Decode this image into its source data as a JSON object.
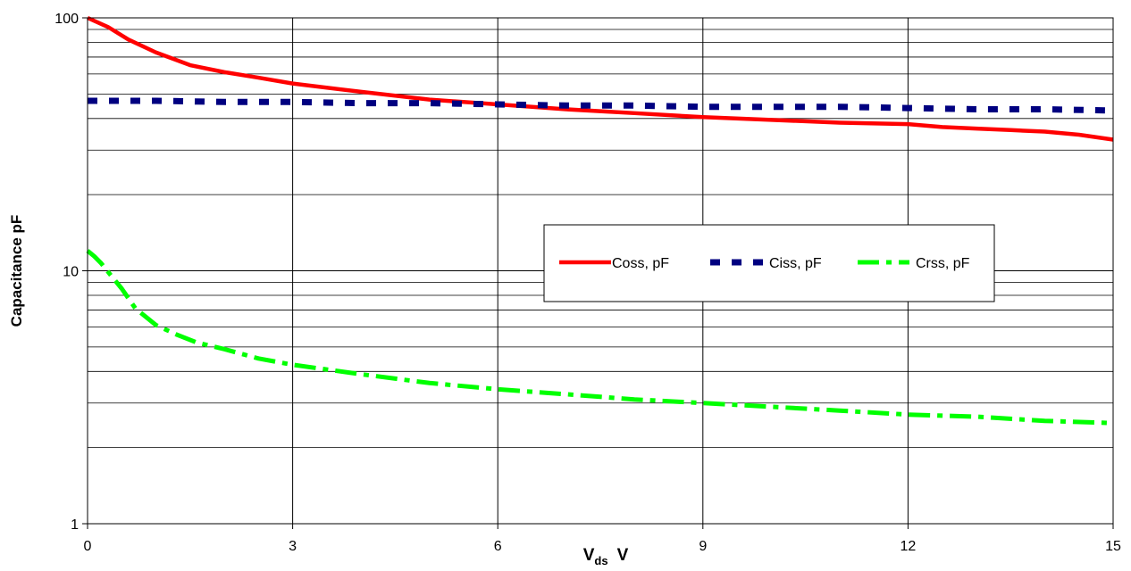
{
  "chart_data": {
    "type": "line",
    "title": "",
    "ylabel": "Capacitance pF",
    "xlabel": {
      "main": "V",
      "sub": "ds",
      "unit": "V"
    },
    "xlim": [
      0,
      15
    ],
    "ylim": [
      1,
      100
    ],
    "yscale": "log",
    "grid": true,
    "legend_position": "center-right",
    "x_ticks": [
      0,
      3,
      6,
      9,
      12,
      15
    ],
    "x_tick_labels": [
      "0",
      "3",
      "6",
      "9",
      "12",
      "15"
    ],
    "y_ticks": [
      1,
      10,
      100
    ],
    "y_tick_labels": [
      "1",
      "10",
      "100"
    ],
    "series": [
      {
        "name": "Coss, pF",
        "color": "#ff0000",
        "style": "solid",
        "x": [
          0,
          0.3,
          0.6,
          1,
          1.5,
          2,
          2.5,
          3,
          4,
          5,
          6,
          7,
          8,
          9,
          10,
          11,
          12,
          12.5,
          13,
          13.5,
          14,
          14.5,
          15
        ],
        "y": [
          100,
          92,
          82,
          73,
          65,
          61,
          58,
          55,
          51,
          47.5,
          45.5,
          43.5,
          42,
          40.5,
          39.5,
          38.5,
          38,
          37,
          36.5,
          36,
          35.5,
          34.5,
          33
        ]
      },
      {
        "name": "Ciss, pF",
        "color": "#000080",
        "style": "dashed",
        "x": [
          0,
          1,
          2,
          3,
          4,
          5,
          6,
          7,
          8,
          9,
          10,
          11,
          12,
          13,
          14,
          15
        ],
        "y": [
          47,
          47,
          46.5,
          46.5,
          46,
          46,
          45.5,
          45,
          45,
          44.5,
          44.5,
          44.5,
          44,
          43.5,
          43.5,
          43
        ]
      },
      {
        "name": "Crss, pF",
        "color": "#00ff00",
        "style": "dashdot",
        "x": [
          0,
          0.1,
          0.2,
          0.3,
          0.5,
          0.7,
          1,
          1.3,
          1.6,
          2,
          2.5,
          3,
          4,
          5,
          6,
          7,
          8,
          9,
          10,
          11,
          12,
          13,
          14,
          15
        ],
        "y": [
          12,
          11.4,
          10.7,
          9.9,
          8.5,
          7.1,
          6.1,
          5.6,
          5.2,
          4.9,
          4.5,
          4.25,
          3.9,
          3.6,
          3.4,
          3.25,
          3.1,
          3.0,
          2.9,
          2.8,
          2.7,
          2.65,
          2.55,
          2.5
        ]
      }
    ]
  }
}
